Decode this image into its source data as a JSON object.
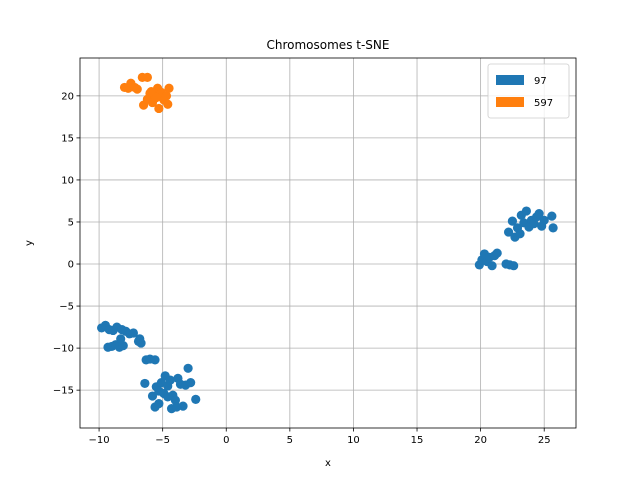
{
  "chart_data": {
    "type": "scatter",
    "title": "Chromosomes t-SNE",
    "xlabel": "x",
    "ylabel": "y",
    "xlim": [
      -11.5,
      27.5
    ],
    "ylim": [
      -19.5,
      24.5
    ],
    "xticks": [
      -10,
      -5,
      0,
      5,
      10,
      15,
      20,
      25
    ],
    "yticks": [
      -15,
      -10,
      -5,
      0,
      5,
      10,
      15,
      20
    ],
    "grid": true,
    "legend_position": "top-right",
    "series": [
      {
        "name": "97",
        "color": "#1f77b4",
        "points": [
          [
            -9.8,
            -7.6
          ],
          [
            -9.5,
            -7.3
          ],
          [
            -9.2,
            -7.8
          ],
          [
            -8.9,
            -7.9
          ],
          [
            -8.6,
            -7.5
          ],
          [
            -8.2,
            -7.8
          ],
          [
            -7.9,
            -8.0
          ],
          [
            -7.6,
            -8.3
          ],
          [
            -7.3,
            -8.2
          ],
          [
            -9.3,
            -9.9
          ],
          [
            -9.0,
            -9.8
          ],
          [
            -8.7,
            -9.6
          ],
          [
            -8.4,
            -9.9
          ],
          [
            -8.1,
            -9.7
          ],
          [
            -8.3,
            -8.9
          ],
          [
            -6.9,
            -9.2
          ],
          [
            -6.7,
            -9.4
          ],
          [
            -6.8,
            -8.9
          ],
          [
            -6.3,
            -11.4
          ],
          [
            -6.0,
            -11.3
          ],
          [
            -5.6,
            -11.4
          ],
          [
            -6.4,
            -14.2
          ],
          [
            -5.8,
            -15.7
          ],
          [
            -5.5,
            -14.6
          ],
          [
            -5.3,
            -15.1
          ],
          [
            -5.1,
            -14.1
          ],
          [
            -4.8,
            -13.3
          ],
          [
            -4.6,
            -14.5
          ],
          [
            -4.4,
            -13.8
          ],
          [
            -4.2,
            -15.6
          ],
          [
            -4.0,
            -16.2
          ],
          [
            -3.8,
            -13.6
          ],
          [
            -3.6,
            -14.3
          ],
          [
            -3.4,
            -16.9
          ],
          [
            -3.2,
            -14.4
          ],
          [
            -3.0,
            -12.4
          ],
          [
            -2.8,
            -14.1
          ],
          [
            -2.4,
            -16.1
          ],
          [
            -5.6,
            -17.0
          ],
          [
            -5.3,
            -16.6
          ],
          [
            -4.9,
            -15.4
          ],
          [
            -4.6,
            -15.8
          ],
          [
            -4.3,
            -17.2
          ],
          [
            -3.9,
            -17.0
          ],
          [
            19.9,
            -0.1
          ],
          [
            20.1,
            0.5
          ],
          [
            20.3,
            1.2
          ],
          [
            20.5,
            0.3
          ],
          [
            20.7,
            0.8
          ],
          [
            20.9,
            -0.2
          ],
          [
            21.1,
            1.0
          ],
          [
            21.3,
            1.3
          ],
          [
            22.0,
            0.0
          ],
          [
            22.3,
            -0.1
          ],
          [
            22.6,
            -0.2
          ],
          [
            22.2,
            3.8
          ],
          [
            22.5,
            5.1
          ],
          [
            22.7,
            3.2
          ],
          [
            22.9,
            4.3
          ],
          [
            23.1,
            3.6
          ],
          [
            23.2,
            5.8
          ],
          [
            23.4,
            4.9
          ],
          [
            23.6,
            6.3
          ],
          [
            23.8,
            4.4
          ],
          [
            24.0,
            5.2
          ],
          [
            24.2,
            4.8
          ],
          [
            24.4,
            5.6
          ],
          [
            24.6,
            6.0
          ],
          [
            24.8,
            4.5
          ],
          [
            25.0,
            5.2
          ],
          [
            25.6,
            5.7
          ],
          [
            25.7,
            4.3
          ]
        ]
      },
      {
        "name": "597",
        "color": "#ff7f0e",
        "points": [
          [
            -8.0,
            21.0
          ],
          [
            -7.7,
            20.9
          ],
          [
            -7.5,
            21.5
          ],
          [
            -7.2,
            21.0
          ],
          [
            -7.0,
            20.8
          ],
          [
            -6.6,
            22.2
          ],
          [
            -6.2,
            22.2
          ],
          [
            -6.5,
            18.9
          ],
          [
            -6.2,
            19.6
          ],
          [
            -6.0,
            20.3
          ],
          [
            -5.8,
            19.2
          ],
          [
            -5.6,
            20.0
          ],
          [
            -5.4,
            20.9
          ],
          [
            -5.3,
            18.5
          ],
          [
            -5.1,
            20.4
          ],
          [
            -4.9,
            19.5
          ],
          [
            -4.7,
            20.0
          ],
          [
            -4.6,
            19.0
          ],
          [
            -4.5,
            20.9
          ],
          [
            -5.9,
            20.5
          ],
          [
            -5.5,
            19.8
          ]
        ]
      }
    ]
  }
}
